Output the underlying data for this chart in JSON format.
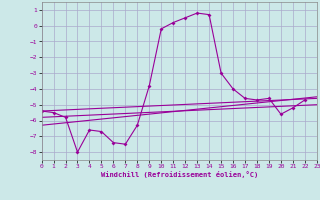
{
  "xlabel": "Windchill (Refroidissement éolien,°C)",
  "background_color": "#cce8e8",
  "grid_color": "#aaaacc",
  "line_color": "#990099",
  "xlim": [
    0,
    23
  ],
  "ylim": [
    -8.5,
    1.5
  ],
  "yticks": [
    1,
    0,
    -1,
    -2,
    -3,
    -4,
    -5,
    -6,
    -7,
    -8
  ],
  "xticks": [
    0,
    1,
    2,
    3,
    4,
    5,
    6,
    7,
    8,
    9,
    10,
    11,
    12,
    13,
    14,
    15,
    16,
    17,
    18,
    19,
    20,
    21,
    22,
    23
  ],
  "series": [
    [
      0,
      -5.4
    ],
    [
      1,
      -5.5
    ],
    [
      2,
      -5.8
    ],
    [
      3,
      -8.0
    ],
    [
      4,
      -6.6
    ],
    [
      5,
      -6.7
    ],
    [
      6,
      -7.4
    ],
    [
      7,
      -7.5
    ],
    [
      8,
      -6.3
    ],
    [
      9,
      -3.8
    ],
    [
      10,
      -0.2
    ],
    [
      11,
      0.2
    ],
    [
      12,
      0.5
    ],
    [
      13,
      0.8
    ],
    [
      14,
      0.7
    ],
    [
      15,
      -3.0
    ],
    [
      16,
      -4.0
    ],
    [
      17,
      -4.6
    ],
    [
      18,
      -4.7
    ],
    [
      19,
      -4.6
    ],
    [
      20,
      -5.6
    ],
    [
      21,
      -5.2
    ],
    [
      22,
      -4.7
    ]
  ],
  "line1": [
    [
      0,
      -5.4
    ],
    [
      23,
      -4.6
    ]
  ],
  "line2": [
    [
      0,
      -5.8
    ],
    [
      23,
      -5.0
    ]
  ],
  "line3": [
    [
      0,
      -6.3
    ],
    [
      23,
      -4.5
    ]
  ]
}
